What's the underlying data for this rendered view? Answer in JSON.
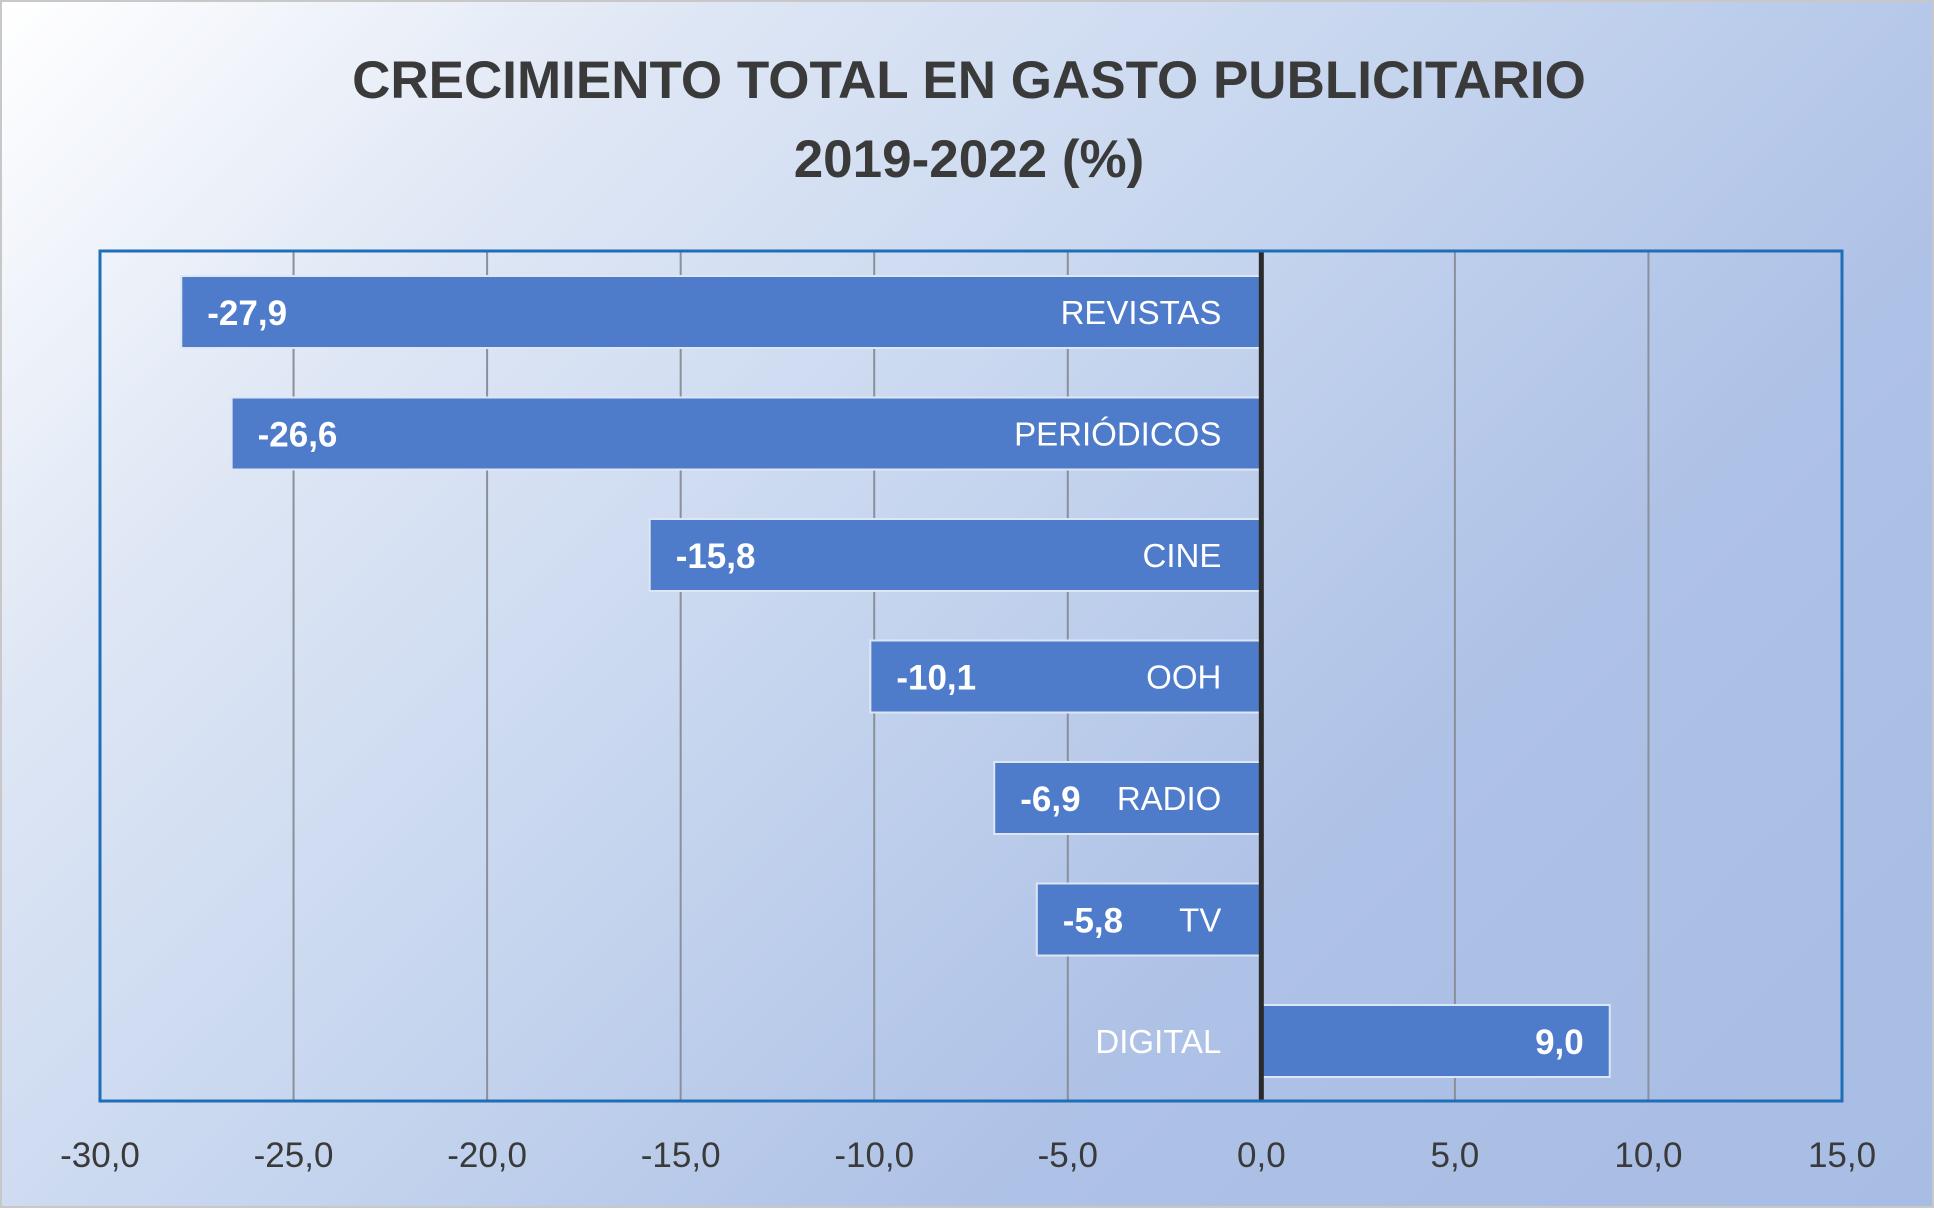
{
  "chart_data": {
    "type": "bar",
    "orientation": "horizontal",
    "title": [
      "CRECIMIENTO TOTAL EN GASTO PUBLICITARIO",
      "2019-2022 (%)"
    ],
    "categories": [
      "REVISTAS",
      "PERIÓDICOS",
      "CINE",
      "OOH",
      "RADIO",
      "TV",
      "DIGITAL"
    ],
    "values": [
      -27.9,
      -26.6,
      -15.8,
      -10.1,
      -6.9,
      -5.8,
      9.0
    ],
    "value_labels": [
      "-27,9",
      "-26,6",
      "-15,8",
      "-10,1",
      "-6,9",
      "-5,8",
      "9,0"
    ],
    "xlim": [
      -30,
      15
    ],
    "x_ticks": [
      -30,
      -25,
      -20,
      -15,
      -10,
      -5,
      0,
      5,
      10,
      15
    ],
    "x_tick_labels": [
      "-30,0",
      "-25,0",
      "-20,0",
      "-15,0",
      "-10,0",
      "-5,0",
      "0,0",
      "5,0",
      "10,0",
      "15,0"
    ],
    "grid": true,
    "legend": "none",
    "colors": {
      "bar": "#4f7bcb",
      "bar_edge": "#dce6f5",
      "plot_border": "#1f6fb8",
      "zero_line": "#2b2b2b",
      "grid": "#8a8f99",
      "title": "#3a3a3a",
      "tick_text": "#3a3a3a",
      "bar_text": "#ffffff"
    }
  }
}
